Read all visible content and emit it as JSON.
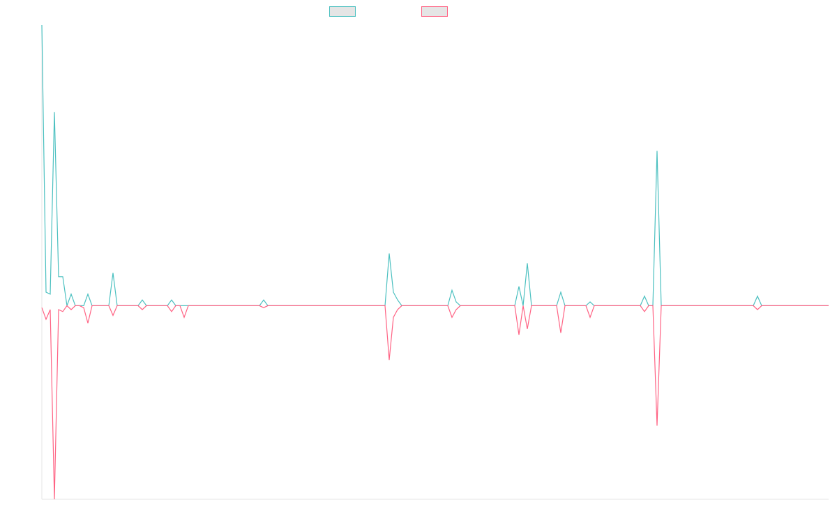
{
  "chart_data": {
    "type": "line",
    "legend_position": "top-center",
    "grid": false,
    "x_range": [
      0,
      188
    ],
    "ylim": [
      -1.0,
      1.45
    ],
    "baseline": 0,
    "series": [
      {
        "name": "",
        "color": "#4bc0c0",
        "points": [
          [
            0,
            1.45
          ],
          [
            1,
            0.07
          ],
          [
            2,
            0.06
          ],
          [
            3,
            1.0
          ],
          [
            4,
            0.15
          ],
          [
            5,
            0.15
          ],
          [
            6,
            0.0
          ],
          [
            7,
            0.06
          ],
          [
            8,
            0.0
          ],
          [
            9,
            0.0
          ],
          [
            10,
            0.0
          ],
          [
            11,
            0.06
          ],
          [
            12,
            0.0
          ],
          [
            13,
            0.0
          ],
          [
            14,
            0.0
          ],
          [
            16,
            0.0
          ],
          [
            17,
            0.17
          ],
          [
            18,
            0.0
          ],
          [
            20,
            0.0
          ],
          [
            23,
            0.0
          ],
          [
            24,
            0.03
          ],
          [
            25,
            0.0
          ],
          [
            30,
            0.0
          ],
          [
            31,
            0.03
          ],
          [
            32,
            0.0
          ],
          [
            33,
            0.0
          ],
          [
            34,
            0.0
          ],
          [
            35,
            0.0
          ],
          [
            36,
            0.0
          ],
          [
            37,
            0.0
          ],
          [
            38,
            0.0
          ],
          [
            39,
            0.0
          ],
          [
            40,
            0.0
          ],
          [
            41,
            0.0
          ],
          [
            45,
            0.0
          ],
          [
            46,
            0.0
          ],
          [
            52,
            0.0
          ],
          [
            53,
            0.03
          ],
          [
            54,
            0.0
          ],
          [
            55,
            0.0
          ],
          [
            60,
            0.0
          ],
          [
            61,
            0.0
          ],
          [
            62,
            0.0
          ],
          [
            63,
            0.0
          ],
          [
            64,
            0.0
          ],
          [
            65,
            0.0
          ],
          [
            66,
            0.0
          ],
          [
            67,
            0.0
          ],
          [
            68,
            0.0
          ],
          [
            69,
            0.0
          ],
          [
            70,
            0.0
          ],
          [
            71,
            0.0
          ],
          [
            72,
            0.0
          ],
          [
            73,
            0.0
          ],
          [
            74,
            0.0
          ],
          [
            75,
            0.0
          ],
          [
            76,
            0.0
          ],
          [
            77,
            0.0
          ],
          [
            78,
            0.0
          ],
          [
            80,
            0.0
          ],
          [
            82,
            0.0
          ],
          [
            83,
            0.27
          ],
          [
            84,
            0.07
          ],
          [
            85,
            0.03
          ],
          [
            86,
            0.0
          ],
          [
            97,
            0.0
          ],
          [
            98,
            0.08
          ],
          [
            99,
            0.02
          ],
          [
            100,
            0.0
          ],
          [
            113,
            0.0
          ],
          [
            114,
            0.1
          ],
          [
            115,
            0.0
          ],
          [
            116,
            0.22
          ],
          [
            117,
            0.0
          ],
          [
            118,
            0.0
          ],
          [
            123,
            0.0
          ],
          [
            124,
            0.07
          ],
          [
            125,
            0.0
          ],
          [
            130,
            0.0
          ],
          [
            131,
            0.02
          ],
          [
            132,
            0.0
          ],
          [
            143,
            0.0
          ],
          [
            144,
            0.05
          ],
          [
            145,
            0.0
          ],
          [
            146,
            0.0
          ],
          [
            147,
            0.8
          ],
          [
            148,
            0.0
          ],
          [
            170,
            0.0
          ],
          [
            171,
            0.05
          ],
          [
            172,
            0.0
          ],
          [
            173,
            0.0
          ],
          [
            175,
            0.0
          ],
          [
            178,
            0.0
          ],
          [
            188,
            0.0
          ]
        ]
      },
      {
        "name": "",
        "color": "#ff6384",
        "points": [
          [
            0,
            -0.01
          ],
          [
            1,
            -0.07
          ],
          [
            2,
            -0.02
          ],
          [
            3,
            -1.0
          ],
          [
            4,
            -0.02
          ],
          [
            5,
            -0.03
          ],
          [
            6,
            0.0
          ],
          [
            7,
            -0.02
          ],
          [
            8,
            0.0
          ],
          [
            9,
            0.0
          ],
          [
            10,
            -0.01
          ],
          [
            11,
            -0.09
          ],
          [
            12,
            0.0
          ],
          [
            13,
            0.0
          ],
          [
            14,
            0.0
          ],
          [
            16,
            0.0
          ],
          [
            17,
            -0.05
          ],
          [
            18,
            0.0
          ],
          [
            20,
            0.0
          ],
          [
            23,
            0.0
          ],
          [
            24,
            -0.02
          ],
          [
            25,
            0.0
          ],
          [
            30,
            0.0
          ],
          [
            31,
            -0.03
          ],
          [
            32,
            0.0
          ],
          [
            33,
            0.0
          ],
          [
            34,
            -0.06
          ],
          [
            35,
            0.0
          ],
          [
            36,
            0.0
          ],
          [
            37,
            0.0
          ],
          [
            38,
            0.0
          ],
          [
            39,
            0.0
          ],
          [
            40,
            0.0
          ],
          [
            41,
            0.0
          ],
          [
            45,
            0.0
          ],
          [
            46,
            0.0
          ],
          [
            52,
            0.0
          ],
          [
            53,
            -0.01
          ],
          [
            54,
            0.0
          ],
          [
            55,
            0.0
          ],
          [
            60,
            0.0
          ],
          [
            61,
            0.0
          ],
          [
            62,
            0.0
          ],
          [
            63,
            0.0
          ],
          [
            64,
            0.0
          ],
          [
            65,
            0.0
          ],
          [
            66,
            0.0
          ],
          [
            67,
            0.0
          ],
          [
            68,
            0.0
          ],
          [
            69,
            0.0
          ],
          [
            70,
            0.0
          ],
          [
            71,
            0.0
          ],
          [
            72,
            0.0
          ],
          [
            73,
            0.0
          ],
          [
            74,
            0.0
          ],
          [
            75,
            0.0
          ],
          [
            76,
            0.0
          ],
          [
            77,
            0.0
          ],
          [
            78,
            0.0
          ],
          [
            80,
            0.0
          ],
          [
            82,
            0.0
          ],
          [
            83,
            -0.28
          ],
          [
            84,
            -0.06
          ],
          [
            85,
            -0.02
          ],
          [
            86,
            0.0
          ],
          [
            97,
            0.0
          ],
          [
            98,
            -0.06
          ],
          [
            99,
            -0.02
          ],
          [
            100,
            0.0
          ],
          [
            113,
            0.0
          ],
          [
            114,
            -0.15
          ],
          [
            115,
            0.0
          ],
          [
            116,
            -0.12
          ],
          [
            117,
            0.0
          ],
          [
            118,
            0.0
          ],
          [
            123,
            0.0
          ],
          [
            124,
            -0.14
          ],
          [
            125,
            0.0
          ],
          [
            130,
            0.0
          ],
          [
            131,
            -0.06
          ],
          [
            132,
            0.0
          ],
          [
            143,
            0.0
          ],
          [
            144,
            -0.03
          ],
          [
            145,
            0.0
          ],
          [
            146,
            0.0
          ],
          [
            147,
            -0.62
          ],
          [
            148,
            0.0
          ],
          [
            170,
            0.0
          ],
          [
            171,
            -0.02
          ],
          [
            172,
            0.0
          ],
          [
            173,
            0.0
          ],
          [
            175,
            0.0
          ],
          [
            178,
            0.0
          ],
          [
            188,
            0.0
          ]
        ]
      }
    ]
  }
}
